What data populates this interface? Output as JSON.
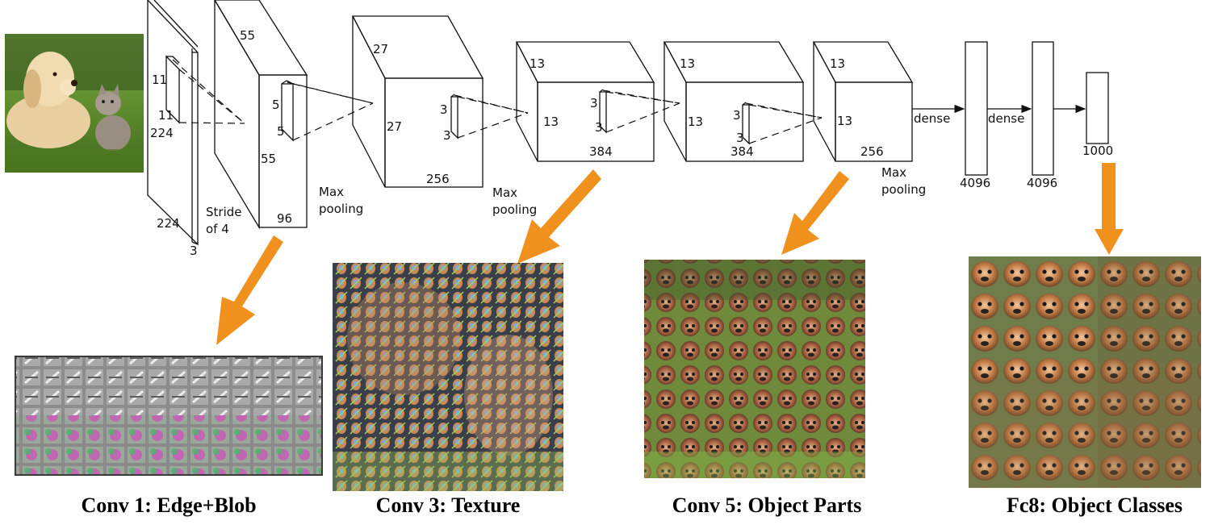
{
  "colors": {
    "arrow": "#f0911e",
    "line": "#111111"
  },
  "input": {
    "picture": "puppy and kitten on grass",
    "dims": {
      "height": "224",
      "width": "224",
      "depth": "3"
    },
    "filter": {
      "h": "11",
      "w": "11"
    },
    "stride": [
      "Stride",
      "of 4"
    ]
  },
  "conv1": {
    "top": "55",
    "side": "55",
    "depth": "96",
    "filter_h": "5",
    "filter_w": "5"
  },
  "pool1": [
    "Max",
    "pooling"
  ],
  "conv2": {
    "top": "27",
    "side": "27",
    "depth": "256",
    "filter_h": "3",
    "filter_w": "3"
  },
  "pool2": [
    "Max",
    "pooling"
  ],
  "conv3": {
    "top": "13",
    "side": "13",
    "depth": "384",
    "filter_h": "3",
    "filter_w": "3"
  },
  "conv4": {
    "top": "13",
    "side": "13",
    "depth": "384",
    "filter_h": "3",
    "filter_w": "3"
  },
  "conv5": {
    "top": "13",
    "side": "13",
    "depth": "256"
  },
  "pool3": [
    "Max",
    "pooling"
  ],
  "fc": [
    {
      "arrow_label": "dense",
      "size": "4096"
    },
    {
      "arrow_label": "dense",
      "size": "4096"
    },
    {
      "size": "1000"
    }
  ],
  "visualizations": [
    {
      "caption": "Conv 1: Edge+Blob",
      "picture": "grid of edge and color blob filters"
    },
    {
      "caption": "Conv 3: Texture",
      "picture": "textured reconstruction of puppy and kitten"
    },
    {
      "caption": "Conv 5: Object Parts",
      "picture": "grid of dog nose and eye parts"
    },
    {
      "caption": "Fc8: Object Classes",
      "picture": "grid of dog and cat faces"
    }
  ]
}
